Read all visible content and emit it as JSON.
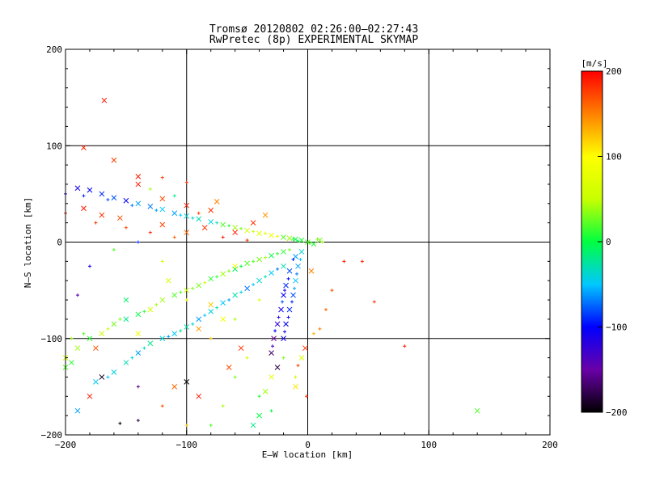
{
  "chart_data": {
    "type": "scatter",
    "title": "Tromsø 20120802 02:26:00–02:27:43",
    "subtitle": "RwPretec (8p) EXPERIMENTAL SKYMAP",
    "xlabel": "E–W location [km]",
    "ylabel": "N–S location [km]",
    "xlim": [
      -200,
      200
    ],
    "ylim": [
      -200,
      200
    ],
    "x_ticks": [
      "−200",
      "−100",
      "0",
      "100",
      "200"
    ],
    "y_ticks": [
      "−200",
      "−100",
      "0",
      "100",
      "200"
    ],
    "grid": true,
    "colorbar": {
      "label": "[m/s]",
      "range": [
        -200,
        200
      ],
      "ticks": [
        "200",
        "100",
        "0",
        "−100",
        "−200"
      ]
    },
    "markers": [
      "x",
      "+"
    ],
    "color_stops": [
      "#000000",
      "#6a00a8",
      "#0000ff",
      "#00c8ff",
      "#00ff40",
      "#c8ff00",
      "#ffff00",
      "#ff8000",
      "#ff0000"
    ],
    "points": [
      [
        -190,
        56,
        -110,
        "x"
      ],
      [
        -180,
        54,
        -100,
        "x"
      ],
      [
        -170,
        50,
        -90,
        "x"
      ],
      [
        -160,
        46,
        -80,
        "x"
      ],
      [
        -150,
        43,
        -100,
        "x"
      ],
      [
        -140,
        40,
        -60,
        "x"
      ],
      [
        -130,
        37,
        -70,
        "x"
      ],
      [
        -120,
        34,
        -50,
        "x"
      ],
      [
        -110,
        30,
        -60,
        "x"
      ],
      [
        -100,
        27,
        -40,
        "x"
      ],
      [
        -90,
        24,
        -30,
        "x"
      ],
      [
        -80,
        21,
        -40,
        "x"
      ],
      [
        -70,
        18,
        20,
        "x"
      ],
      [
        -60,
        15,
        40,
        "x"
      ],
      [
        -50,
        12,
        60,
        "x"
      ],
      [
        -40,
        9,
        80,
        "x"
      ],
      [
        -30,
        7,
        90,
        "x"
      ],
      [
        -20,
        5,
        20,
        "x"
      ],
      [
        -10,
        3,
        0,
        "x"
      ],
      [
        -5,
        2,
        10,
        "x"
      ],
      [
        0,
        0,
        20,
        "x"
      ],
      [
        5,
        -2,
        10,
        "x"
      ],
      [
        10,
        2,
        30,
        "x"
      ],
      [
        -15,
        4,
        40,
        "x"
      ],
      [
        -185,
        35,
        190,
        "x"
      ],
      [
        -170,
        28,
        180,
        "x"
      ],
      [
        -155,
        25,
        170,
        "x"
      ],
      [
        -140,
        60,
        190,
        "x"
      ],
      [
        -120,
        18,
        175,
        "x"
      ],
      [
        -100,
        10,
        160,
        "x"
      ],
      [
        -85,
        15,
        180,
        "x"
      ],
      [
        -75,
        42,
        150,
        "x"
      ],
      [
        -60,
        10,
        190,
        "x"
      ],
      [
        -45,
        20,
        180,
        "x"
      ],
      [
        -35,
        28,
        140,
        "x"
      ],
      [
        -168,
        147,
        190,
        "x"
      ],
      [
        -185,
        98,
        185,
        "x"
      ],
      [
        -160,
        85,
        175,
        "x"
      ],
      [
        -140,
        68,
        190,
        "x"
      ],
      [
        -120,
        45,
        170,
        "x"
      ],
      [
        -100,
        38,
        185,
        "x"
      ],
      [
        -80,
        33,
        180,
        "x"
      ],
      [
        -200,
        -120,
        70,
        "x"
      ],
      [
        -190,
        -110,
        40,
        "x"
      ],
      [
        -180,
        -100,
        10,
        "x"
      ],
      [
        -170,
        -95,
        50,
        "x"
      ],
      [
        -160,
        -85,
        30,
        "x"
      ],
      [
        -150,
        -80,
        -20,
        "x"
      ],
      [
        -140,
        -75,
        0,
        "x"
      ],
      [
        -130,
        -70,
        60,
        "x"
      ],
      [
        -120,
        -60,
        40,
        "x"
      ],
      [
        -110,
        -55,
        20,
        "x"
      ],
      [
        -100,
        -50,
        50,
        "x"
      ],
      [
        -90,
        -45,
        30,
        "x"
      ],
      [
        -80,
        -38,
        10,
        "x"
      ],
      [
        -70,
        -33,
        40,
        "x"
      ],
      [
        -60,
        -28,
        -10,
        "x"
      ],
      [
        -50,
        -22,
        20,
        "x"
      ],
      [
        -40,
        -18,
        30,
        "x"
      ],
      [
        -30,
        -14,
        0,
        "x"
      ],
      [
        -20,
        -10,
        10,
        "x"
      ],
      [
        -175,
        -145,
        -50,
        "x"
      ],
      [
        -160,
        -135,
        -40,
        "x"
      ],
      [
        -150,
        -125,
        -30,
        "x"
      ],
      [
        -140,
        -115,
        -60,
        "x"
      ],
      [
        -130,
        -105,
        -20,
        "x"
      ],
      [
        -120,
        -100,
        -40,
        "x"
      ],
      [
        -110,
        -95,
        -50,
        "x"
      ],
      [
        -100,
        -88,
        -30,
        "x"
      ],
      [
        -90,
        -80,
        -60,
        "x"
      ],
      [
        -80,
        -72,
        -40,
        "x"
      ],
      [
        -70,
        -63,
        -50,
        "x"
      ],
      [
        -60,
        -55,
        -30,
        "x"
      ],
      [
        -50,
        -48,
        -70,
        "x"
      ],
      [
        -40,
        -40,
        -40,
        "x"
      ],
      [
        -30,
        -32,
        -50,
        "x"
      ],
      [
        -20,
        -25,
        -30,
        "x"
      ],
      [
        -10,
        -15,
        -60,
        "x"
      ],
      [
        -15,
        -30,
        -80,
        "x"
      ],
      [
        -18,
        -45,
        -90,
        "x"
      ],
      [
        -20,
        -55,
        -100,
        "x"
      ],
      [
        -22,
        -70,
        -110,
        "x"
      ],
      [
        -25,
        -85,
        -120,
        "x"
      ],
      [
        -28,
        -100,
        -150,
        "x"
      ],
      [
        -30,
        -115,
        -170,
        "x"
      ],
      [
        -25,
        -130,
        -180,
        "x"
      ],
      [
        -5,
        -10,
        -40,
        "x"
      ],
      [
        -8,
        -25,
        -60,
        "x"
      ],
      [
        -10,
        -40,
        -50,
        "x"
      ],
      [
        -12,
        -55,
        -80,
        "x"
      ],
      [
        -15,
        -70,
        -90,
        "x"
      ],
      [
        -18,
        -85,
        -100,
        "x"
      ],
      [
        -20,
        -100,
        -110,
        "x"
      ],
      [
        -30,
        -140,
        80,
        "x"
      ],
      [
        -35,
        -155,
        40,
        "x"
      ],
      [
        -40,
        -180,
        0,
        "x"
      ],
      [
        -45,
        -190,
        -20,
        "x"
      ],
      [
        -55,
        -110,
        180,
        "x"
      ],
      [
        -65,
        -130,
        170,
        "x"
      ],
      [
        -90,
        -160,
        190,
        "x"
      ],
      [
        -110,
        -150,
        160,
        "x"
      ],
      [
        -170,
        -140,
        -190,
        "x"
      ],
      [
        -100,
        -145,
        -200,
        "x"
      ],
      [
        140,
        -175,
        20,
        "x"
      ],
      [
        -10,
        -150,
        110,
        "x"
      ],
      [
        -5,
        -120,
        70,
        "x"
      ],
      [
        -2,
        -110,
        180,
        "x"
      ],
      [
        3,
        -30,
        150,
        "x"
      ],
      [
        -200,
        -130,
        20,
        "x"
      ],
      [
        -195,
        -125,
        10,
        "x"
      ],
      [
        -190,
        -175,
        -60,
        "x"
      ],
      [
        -180,
        -160,
        190,
        "x"
      ],
      [
        -175,
        -110,
        170,
        "x"
      ],
      [
        -60,
        -25,
        100,
        "x"
      ],
      [
        -70,
        -80,
        90,
        "x"
      ],
      [
        -80,
        -65,
        120,
        "x"
      ],
      [
        -90,
        -90,
        140,
        "x"
      ],
      [
        -115,
        -40,
        60,
        "x"
      ],
      [
        -140,
        -95,
        90,
        "x"
      ],
      [
        -150,
        -60,
        -10,
        "x"
      ],
      [
        -200,
        50,
        -120,
        "+"
      ],
      [
        -185,
        48,
        -90,
        "+"
      ],
      [
        -165,
        44,
        -80,
        "+"
      ],
      [
        -145,
        38,
        -70,
        "+"
      ],
      [
        -125,
        33,
        -60,
        "+"
      ],
      [
        -105,
        28,
        -50,
        "+"
      ],
      [
        -95,
        25,
        -40,
        "+"
      ],
      [
        -75,
        20,
        -30,
        "+"
      ],
      [
        -65,
        17,
        10,
        "+"
      ],
      [
        -55,
        14,
        30,
        "+"
      ],
      [
        -45,
        11,
        50,
        "+"
      ],
      [
        -35,
        9,
        70,
        "+"
      ],
      [
        -25,
        6,
        80,
        "+"
      ],
      [
        -12,
        3,
        10,
        "+"
      ],
      [
        -8,
        1,
        0,
        "+"
      ],
      [
        2,
        -1,
        20,
        "+"
      ],
      [
        8,
        3,
        30,
        "+"
      ],
      [
        12,
        0,
        40,
        "+"
      ],
      [
        -175,
        20,
        180,
        "+"
      ],
      [
        -150,
        15,
        170,
        "+"
      ],
      [
        -130,
        10,
        185,
        "+"
      ],
      [
        -110,
        5,
        160,
        "+"
      ],
      [
        -90,
        30,
        175,
        "+"
      ],
      [
        -70,
        5,
        190,
        "+"
      ],
      [
        -50,
        2,
        180,
        "+"
      ],
      [
        -200,
        30,
        190,
        "+"
      ],
      [
        -195,
        -100,
        40,
        "+"
      ],
      [
        -185,
        -95,
        20,
        "+"
      ],
      [
        -165,
        -90,
        50,
        "+"
      ],
      [
        -155,
        -80,
        30,
        "+"
      ],
      [
        -135,
        -72,
        10,
        "+"
      ],
      [
        -125,
        -65,
        40,
        "+"
      ],
      [
        -105,
        -52,
        20,
        "+"
      ],
      [
        -95,
        -48,
        30,
        "+"
      ],
      [
        -85,
        -42,
        50,
        "+"
      ],
      [
        -75,
        -36,
        10,
        "+"
      ],
      [
        -65,
        -30,
        30,
        "+"
      ],
      [
        -55,
        -25,
        0,
        "+"
      ],
      [
        -45,
        -20,
        20,
        "+"
      ],
      [
        -35,
        -16,
        40,
        "+"
      ],
      [
        -25,
        -12,
        10,
        "+"
      ],
      [
        -15,
        -8,
        30,
        "+"
      ],
      [
        -165,
        -140,
        -50,
        "+"
      ],
      [
        -145,
        -120,
        -40,
        "+"
      ],
      [
        -135,
        -110,
        -30,
        "+"
      ],
      [
        -115,
        -98,
        -60,
        "+"
      ],
      [
        -105,
        -92,
        -20,
        "+"
      ],
      [
        -95,
        -85,
        -40,
        "+"
      ],
      [
        -85,
        -76,
        -50,
        "+"
      ],
      [
        -75,
        -68,
        -30,
        "+"
      ],
      [
        -65,
        -60,
        -60,
        "+"
      ],
      [
        -55,
        -52,
        -40,
        "+"
      ],
      [
        -45,
        -44,
        -50,
        "+"
      ],
      [
        -35,
        -36,
        -30,
        "+"
      ],
      [
        -25,
        -28,
        -70,
        "+"
      ],
      [
        -12,
        -18,
        -90,
        "+"
      ],
      [
        -16,
        -38,
        -100,
        "+"
      ],
      [
        -19,
        -50,
        -110,
        "+"
      ],
      [
        -21,
        -62,
        -80,
        "+"
      ],
      [
        -24,
        -78,
        -120,
        "+"
      ],
      [
        -27,
        -92,
        -100,
        "+"
      ],
      [
        -29,
        -108,
        -130,
        "+"
      ],
      [
        -6,
        -18,
        -50,
        "+"
      ],
      [
        -9,
        -33,
        -70,
        "+"
      ],
      [
        -11,
        -48,
        -60,
        "+"
      ],
      [
        -13,
        -62,
        -90,
        "+"
      ],
      [
        -16,
        -78,
        -100,
        "+"
      ],
      [
        -19,
        -93,
        -110,
        "+"
      ],
      [
        -50,
        -120,
        60,
        "+"
      ],
      [
        -60,
        -140,
        30,
        "+"
      ],
      [
        -70,
        -170,
        40,
        "+"
      ],
      [
        -80,
        -190,
        20,
        "+"
      ],
      [
        -40,
        -160,
        10,
        "+"
      ],
      [
        -30,
        -175,
        0,
        "+"
      ],
      [
        30,
        -20,
        190,
        "+"
      ],
      [
        45,
        -20,
        185,
        "+"
      ],
      [
        55,
        -62,
        180,
        "+"
      ],
      [
        80,
        -108,
        190,
        "+"
      ],
      [
        20,
        -50,
        170,
        "+"
      ],
      [
        15,
        -70,
        160,
        "+"
      ],
      [
        10,
        -90,
        150,
        "+"
      ],
      [
        5,
        -95,
        130,
        "+"
      ],
      [
        -1,
        -160,
        180,
        "+"
      ],
      [
        -8,
        -128,
        175,
        "+"
      ],
      [
        -120,
        -170,
        170,
        "+"
      ],
      [
        -140,
        -185,
        -180,
        "+"
      ],
      [
        -155,
        -188,
        -200,
        "+"
      ],
      [
        -190,
        -55,
        -140,
        "+"
      ],
      [
        -180,
        -25,
        -110,
        "+"
      ],
      [
        -160,
        -8,
        20,
        "+"
      ],
      [
        -140,
        0,
        -90,
        "+"
      ],
      [
        -120,
        -20,
        60,
        "+"
      ],
      [
        -100,
        -60,
        90,
        "+"
      ],
      [
        -80,
        -100,
        120,
        "+"
      ],
      [
        -60,
        -80,
        40,
        "+"
      ],
      [
        -40,
        -60,
        70,
        "+"
      ],
      [
        -20,
        -120,
        30,
        "+"
      ],
      [
        -10,
        -140,
        50,
        "+"
      ],
      [
        -130,
        55,
        40,
        "+"
      ],
      [
        -110,
        48,
        -20,
        "+"
      ],
      [
        -100,
        62,
        180,
        "+"
      ],
      [
        -120,
        67,
        175,
        "+"
      ],
      [
        -140,
        -150,
        -160,
        "+"
      ],
      [
        -100,
        -190,
        120,
        "+"
      ]
    ]
  }
}
